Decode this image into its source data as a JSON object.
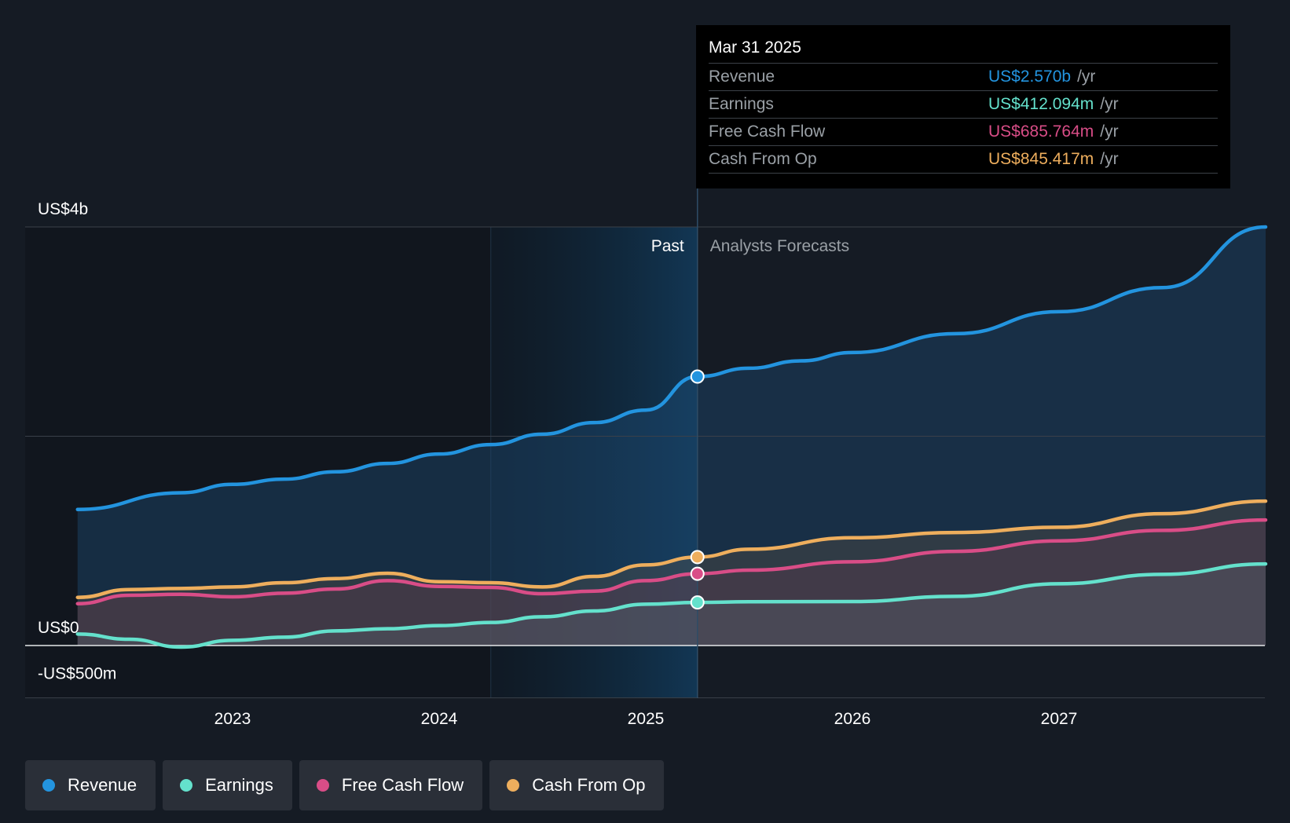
{
  "chart_data": {
    "type": "area",
    "y_tick_labels": [
      "US$4b",
      "US$0",
      "-US$500m"
    ],
    "y_ticks": [
      4000,
      2000,
      0,
      -500
    ],
    "ylim": [
      -500,
      4000
    ],
    "x_ticks": [
      2023,
      2024,
      2025,
      2026,
      2027
    ],
    "x_tick_labels": [
      "2023",
      "2024",
      "2025",
      "2026",
      "2027"
    ],
    "xlim": [
      2022.0,
      2028.0
    ],
    "past_label": "Past",
    "forecast_label": "Analysts Forecasts",
    "divider_x": 2025.25,
    "past_shade_start": 2024.25,
    "grid": true,
    "legend_position": "bottom-left",
    "series": [
      {
        "name": "Revenue",
        "color": "#2394df",
        "points": [
          [
            2022.25,
            1300
          ],
          [
            2022.75,
            1460
          ],
          [
            2023.0,
            1540
          ],
          [
            2023.25,
            1590
          ],
          [
            2023.5,
            1660
          ],
          [
            2023.75,
            1740
          ],
          [
            2024.0,
            1830
          ],
          [
            2024.25,
            1920
          ],
          [
            2024.5,
            2020
          ],
          [
            2024.75,
            2130
          ],
          [
            2025.0,
            2250
          ],
          [
            2025.25,
            2570
          ],
          [
            2025.5,
            2650
          ],
          [
            2025.75,
            2720
          ],
          [
            2026.0,
            2800
          ],
          [
            2026.5,
            2980
          ],
          [
            2027.0,
            3190
          ],
          [
            2027.5,
            3420
          ],
          [
            2028.0,
            4000
          ]
        ]
      },
      {
        "name": "Earnings",
        "color": "#64e1cc",
        "points": [
          [
            2022.25,
            110
          ],
          [
            2022.5,
            60
          ],
          [
            2022.75,
            -15
          ],
          [
            2023.0,
            50
          ],
          [
            2023.25,
            80
          ],
          [
            2023.5,
            140
          ],
          [
            2023.75,
            160
          ],
          [
            2024.0,
            190
          ],
          [
            2024.25,
            220
          ],
          [
            2024.5,
            275
          ],
          [
            2024.75,
            330
          ],
          [
            2025.0,
            395
          ],
          [
            2025.25,
            412
          ],
          [
            2025.5,
            418
          ],
          [
            2026.0,
            420
          ],
          [
            2026.5,
            470
          ],
          [
            2027.0,
            590
          ],
          [
            2027.5,
            680
          ],
          [
            2028.0,
            780
          ]
        ]
      },
      {
        "name": "Free Cash Flow",
        "color": "#d94d87",
        "points": [
          [
            2022.25,
            400
          ],
          [
            2022.5,
            480
          ],
          [
            2022.75,
            490
          ],
          [
            2023.0,
            465
          ],
          [
            2023.25,
            500
          ],
          [
            2023.5,
            540
          ],
          [
            2023.75,
            620
          ],
          [
            2024.0,
            565
          ],
          [
            2024.25,
            555
          ],
          [
            2024.5,
            495
          ],
          [
            2024.75,
            520
          ],
          [
            2025.0,
            620
          ],
          [
            2025.25,
            686
          ],
          [
            2025.5,
            720
          ],
          [
            2026.0,
            800
          ],
          [
            2026.5,
            900
          ],
          [
            2027.0,
            1000
          ],
          [
            2027.5,
            1100
          ],
          [
            2028.0,
            1200
          ]
        ]
      },
      {
        "name": "Cash From Op",
        "color": "#eeae5d",
        "points": [
          [
            2022.25,
            460
          ],
          [
            2022.5,
            535
          ],
          [
            2022.75,
            545
          ],
          [
            2023.0,
            560
          ],
          [
            2023.25,
            600
          ],
          [
            2023.5,
            640
          ],
          [
            2023.75,
            690
          ],
          [
            2024.0,
            610
          ],
          [
            2024.25,
            600
          ],
          [
            2024.5,
            560
          ],
          [
            2024.75,
            660
          ],
          [
            2025.0,
            770
          ],
          [
            2025.25,
            845
          ],
          [
            2025.5,
            920
          ],
          [
            2026.0,
            1030
          ],
          [
            2026.5,
            1080
          ],
          [
            2027.0,
            1130
          ],
          [
            2027.5,
            1260
          ],
          [
            2028.0,
            1380
          ]
        ]
      }
    ]
  },
  "tooltip": {
    "date": "Mar 31 2025",
    "unit": "/yr",
    "rows": [
      {
        "label": "Revenue",
        "value": "US$2.570b",
        "color": "#2394df"
      },
      {
        "label": "Earnings",
        "value": "US$412.094m",
        "color": "#64e1cc"
      },
      {
        "label": "Free Cash Flow",
        "value": "US$685.764m",
        "color": "#d94d87"
      },
      {
        "label": "Cash From Op",
        "value": "US$845.417m",
        "color": "#eeae5d"
      }
    ]
  },
  "legend": [
    {
      "label": "Revenue",
      "color": "#2394df"
    },
    {
      "label": "Earnings",
      "color": "#64e1cc"
    },
    {
      "label": "Free Cash Flow",
      "color": "#d94d87"
    },
    {
      "label": "Cash From Op",
      "color": "#eeae5d"
    }
  ]
}
